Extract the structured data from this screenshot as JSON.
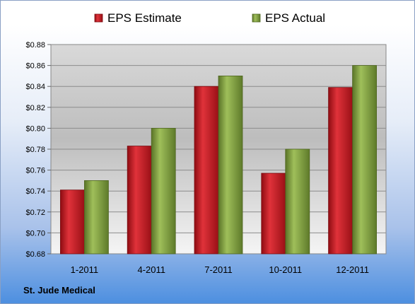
{
  "company": "St. Jude Medical",
  "chart_data": {
    "type": "bar",
    "categories": [
      "1-2011",
      "4-2011",
      "7-2011",
      "10-2011",
      "12-2011"
    ],
    "series": [
      {
        "name": "EPS Estimate",
        "color": "#c0141e",
        "values": [
          0.741,
          0.783,
          0.84,
          0.757,
          0.839
        ]
      },
      {
        "name": "EPS Actual",
        "color": "#7a9a3a",
        "values": [
          0.75,
          0.8,
          0.85,
          0.78,
          0.86
        ]
      }
    ],
    "yticks": [
      "$0.68",
      "$0.70",
      "$0.72",
      "$0.74",
      "$0.76",
      "$0.78",
      "$0.80",
      "$0.82",
      "$0.84",
      "$0.86",
      "$0.88"
    ],
    "ylim": [
      0.68,
      0.88
    ],
    "grid": true,
    "legend": "top-center",
    "title": "",
    "xlabel": "",
    "ylabel": ""
  }
}
